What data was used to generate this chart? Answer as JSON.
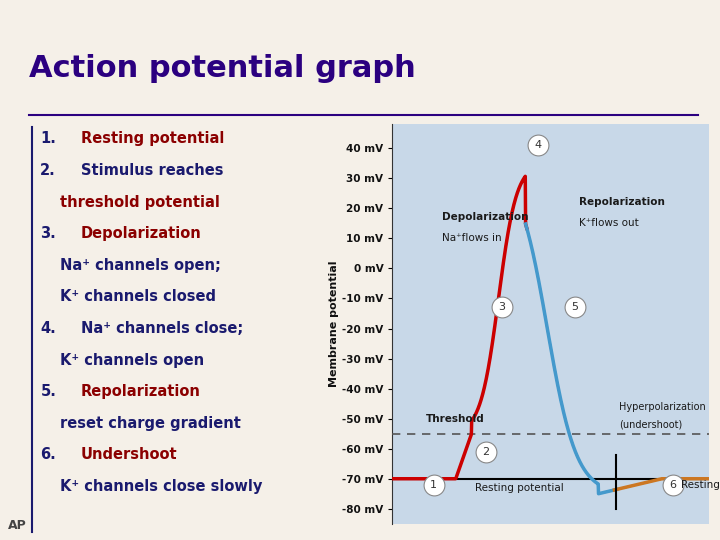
{
  "title": "Action potential graph",
  "title_color": "#2B0080",
  "title_fontsize": 22,
  "bg_color": "#F5F0E8",
  "header_color": "#1A1A6E",
  "ap_label": "AP",
  "ylabel": "Membrane potential",
  "yticks": [
    40,
    30,
    20,
    10,
    0,
    -10,
    -20,
    -30,
    -40,
    -50,
    -60,
    -70,
    -80
  ],
  "ytick_labels": [
    "40 mV",
    "30 mV",
    "20 mV",
    "10 mV",
    "0 mV",
    "-10 mV",
    "-20 mV",
    "-30 mV",
    "-40 mV",
    "-50 mV",
    "-60 mV",
    "-70 mV",
    "-80 mV"
  ],
  "ylim": [
    -85,
    48
  ],
  "resting_mv": -70,
  "threshold_mv": -55,
  "plot_bg": "#C8D8E8",
  "dashed_color": "#555555",
  "red_line_color": "#CC0000",
  "blue_line_color": "#4499CC",
  "orange_line_color": "#CC7722",
  "resting_line_color": "#000000",
  "dark_blue": "#1A1A6E",
  "dark_red": "#8B0000"
}
